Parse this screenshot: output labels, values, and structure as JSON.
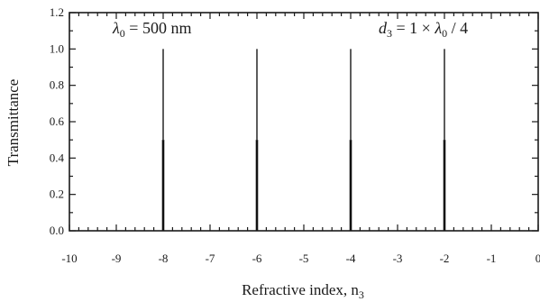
{
  "chart_data": {
    "type": "line",
    "xlabel": "Refractive index, n",
    "xlabel_sub": "3",
    "ylabel": "Transmittance",
    "xlim": [
      -10,
      0
    ],
    "ylim": [
      0,
      1.2
    ],
    "x_ticks": [
      -10,
      -9,
      -8,
      -7,
      -6,
      -5,
      -4,
      -3,
      -2,
      -1,
      0
    ],
    "y_ticks": [
      0.0,
      0.2,
      0.4,
      0.6,
      0.8,
      1.0,
      1.2
    ],
    "x_tick_labels": [
      "-10",
      "-9",
      "-8",
      "-7",
      "-6",
      "-5",
      "-4",
      "-3",
      "-2",
      "-1",
      "0"
    ],
    "y_tick_labels": [
      "0.0",
      "0.2",
      "0.4",
      "0.6",
      "0.8",
      "1.0",
      "1.2"
    ],
    "series": [
      {
        "x": [
          -8,
          -6,
          -4,
          -2
        ],
        "y": [
          1.0,
          1.0,
          1.0,
          1.0
        ]
      }
    ],
    "annotations": {
      "left": {
        "symbol": "λ",
        "sub": "0",
        "text": " = 500 nm"
      },
      "right": {
        "var": "d",
        "var_sub": "3",
        "mid": " = 1 × ",
        "symbol": "λ",
        "sub": "0",
        "tail": " / 4"
      }
    },
    "grid": false,
    "legend": "none"
  }
}
